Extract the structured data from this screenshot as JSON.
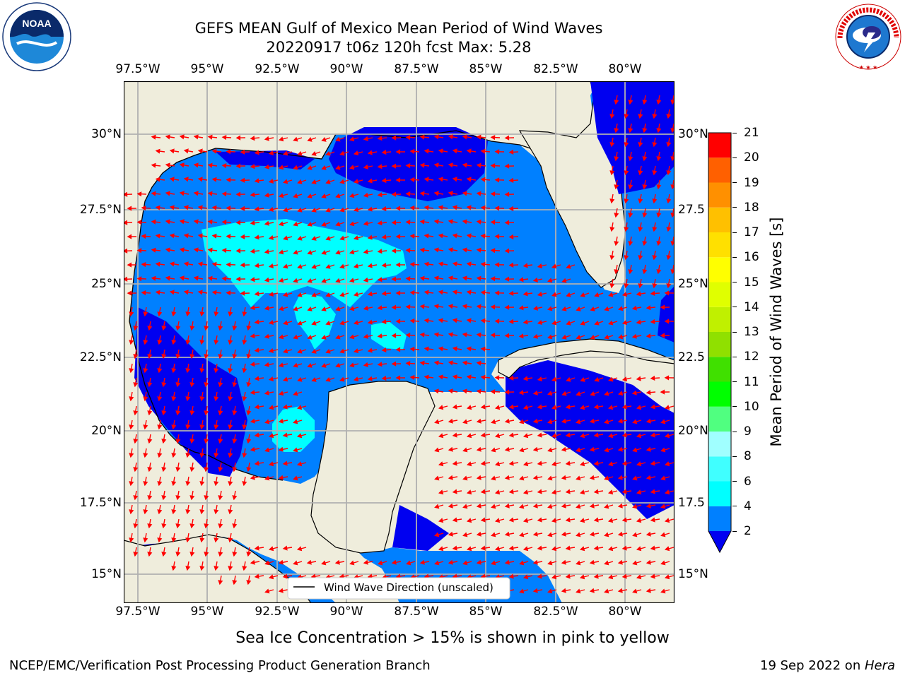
{
  "header": {
    "title_line1": "GEFS MEAN Gulf of Mexico Mean Period of Wind Waves",
    "title_line2": "20220917 t06z 120h fcst   Max: 5.28"
  },
  "map": {
    "lon_ticks": [
      "97.5°W",
      "95°W",
      "92.5°W",
      "90°W",
      "87.5°W",
      "85°W",
      "82.5°W",
      "80°W"
    ],
    "lat_ticks_left": [
      "30°N",
      "27.5°N",
      "25°N",
      "22.5°N",
      "20°N",
      "17.5°N",
      "15°N"
    ],
    "lat_ticks_right": [
      "30°N",
      "27.5",
      "25°N",
      "22.5",
      "20°N",
      "17.5",
      "15°N"
    ],
    "legend_label": "Wind Wave Direction (unscaled)",
    "colors": {
      "land": "#efeddc",
      "ocean_low": "#0080ff",
      "ocean_min": "#0000f0",
      "ocean_mid": "#00ffff",
      "arrow": "#ff0000"
    }
  },
  "colorbar": {
    "label": "Mean Period of Wind Waves [s]",
    "ticks": [
      "2",
      "4",
      "6",
      "8",
      "9",
      "10",
      "11",
      "12",
      "13",
      "14",
      "15",
      "16",
      "17",
      "18",
      "19",
      "20",
      "21"
    ],
    "colors": [
      "#0080ff",
      "#00ffff",
      "#40ffff",
      "#a0ffff",
      "#50ff80",
      "#00ff00",
      "#40e000",
      "#90e000",
      "#c0f000",
      "#e0ff00",
      "#ffff00",
      "#ffe000",
      "#ffc000",
      "#ff9000",
      "#ff6000",
      "#ff3000",
      "#ff0000"
    ],
    "extend_color": "#0000f0"
  },
  "footer": {
    "sea_ice_note": "Sea Ice Concentration > 15% is shown in pink to yellow",
    "left": "NCEP/EMC/Verification Post Processing Product Generation Branch",
    "right_date": "19 Sep 2022 on ",
    "right_host": "Hera"
  },
  "logos": {
    "noaa": "NOAA",
    "nws": "NATIONAL WEATHER SERVICE"
  }
}
